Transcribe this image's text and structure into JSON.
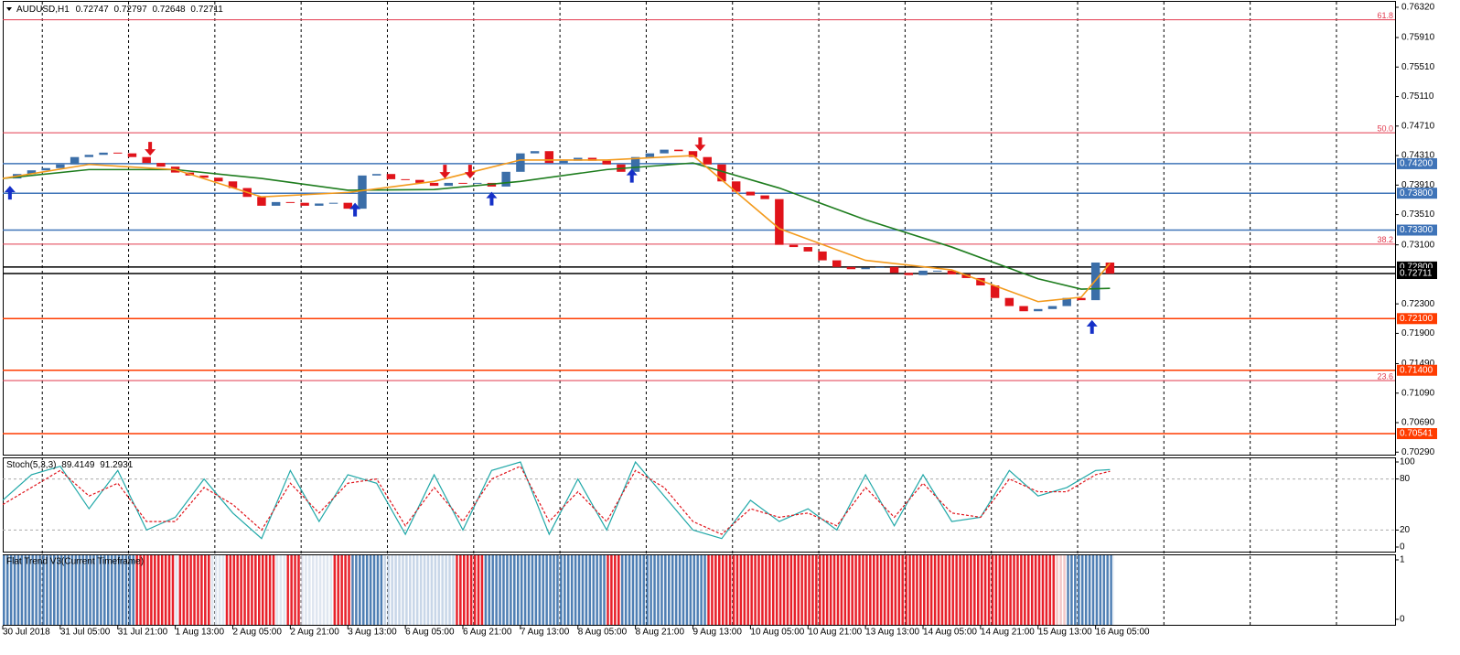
{
  "chart_data": {
    "type": "candlestick",
    "symbol": "AUDUSD,H1",
    "ohlc": [
      0.72747,
      0.72797,
      0.72648,
      0.72711
    ],
    "xlim": [
      0,
      387.3
    ],
    "ylim": [
      0.70256,
      0.76394
    ],
    "yticks": [
      {
        "value": 0.7632,
        "label": "0.76320"
      },
      {
        "value": 0.7591,
        "label": "0.75910"
      },
      {
        "value": 0.7551,
        "label": "0.75510"
      },
      {
        "value": 0.7511,
        "label": "0.75110"
      },
      {
        "value": 0.7471,
        "label": "0.74710"
      },
      {
        "value": 0.7431,
        "label": "0.74310"
      },
      {
        "value": 0.7391,
        "label": "0.73910"
      },
      {
        "value": 0.7351,
        "label": "0.73510"
      },
      {
        "value": 0.731,
        "label": "0.73100"
      },
      {
        "value": 0.723,
        "label": "0.72300"
      },
      {
        "value": 0.719,
        "label": "0.71900"
      },
      {
        "value": 0.7149,
        "label": "0.71490"
      },
      {
        "value": 0.7109,
        "label": "0.71090"
      },
      {
        "value": 0.7069,
        "label": "0.70690"
      },
      {
        "value": 0.7029,
        "label": "0.70290"
      }
    ],
    "xticks": [
      {
        "value": 0,
        "label": "30 Jul 2018"
      },
      {
        "value": 16,
        "label": "31 Jul 05:00"
      },
      {
        "value": 32,
        "label": "31 Jul 21:00"
      },
      {
        "value": 48,
        "label": "1 Aug 13:00"
      },
      {
        "value": 64,
        "label": "2 Aug 05:00"
      },
      {
        "value": 80,
        "label": "2 Aug 21:00"
      },
      {
        "value": 96,
        "label": "3 Aug 13:00"
      },
      {
        "value": 112,
        "label": "6 Aug 05:00"
      },
      {
        "value": 128,
        "label": "6 Aug 21:00"
      },
      {
        "value": 144,
        "label": "7 Aug 13:00"
      },
      {
        "value": 160,
        "label": "8 Aug 05:00"
      },
      {
        "value": 176,
        "label": "8 Aug 21:00"
      },
      {
        "value": 192,
        "label": "9 Aug 13:00"
      },
      {
        "value": 208,
        "label": "10 Aug 05:00"
      },
      {
        "value": 224,
        "label": "10 Aug 21:00"
      },
      {
        "value": 240,
        "label": "13 Aug 13:00"
      },
      {
        "value": 256,
        "label": "14 Aug 05:00"
      },
      {
        "value": 272,
        "label": "14 Aug 21:00"
      },
      {
        "value": 288,
        "label": "15 Aug 13:00"
      },
      {
        "value": 304,
        "label": "16 Aug 05:00"
      }
    ],
    "xgrid": [
      11,
      35,
      59,
      83,
      107,
      131,
      155,
      179,
      203,
      227,
      251,
      275,
      299,
      323,
      347,
      371
    ],
    "up_color": "#3b6ea8",
    "down_color": "#e0131a",
    "x": [
      0,
      4,
      8,
      12,
      16,
      20,
      24,
      28,
      32,
      36,
      40,
      44,
      48,
      52,
      56,
      60,
      64,
      68,
      72,
      76,
      80,
      84,
      88,
      92,
      96,
      100,
      104,
      108,
      112,
      116,
      120,
      124,
      128,
      132,
      136,
      140,
      144,
      148,
      152,
      156,
      160,
      164,
      168,
      172,
      176,
      180,
      184,
      188,
      192,
      196,
      200,
      204,
      208,
      212,
      216,
      220,
      224,
      228,
      232,
      236,
      240,
      244,
      248,
      252,
      256,
      260,
      264,
      268,
      272,
      276,
      280,
      284,
      288,
      292,
      296,
      300,
      304,
      308
    ],
    "close": [
      0.74,
      0.7406,
      0.7411,
      0.7414,
      0.7419,
      0.7429,
      0.7432,
      0.7435,
      0.7434,
      0.7429,
      0.7421,
      0.7416,
      0.7408,
      0.7404,
      0.7401,
      0.7396,
      0.7387,
      0.7375,
      0.7363,
      0.7368,
      0.7367,
      0.7363,
      0.7366,
      0.7367,
      0.7359,
      0.7404,
      0.7406,
      0.7399,
      0.7398,
      0.7394,
      0.739,
      0.7394,
      0.7393,
      0.7394,
      0.7389,
      0.7409,
      0.7434,
      0.7437,
      0.7421,
      0.7424,
      0.7428,
      0.7424,
      0.7419,
      0.7409,
      0.7429,
      0.7434,
      0.7439,
      0.7437,
      0.7429,
      0.7419,
      0.7396,
      0.7382,
      0.7377,
      0.7372,
      0.731,
      0.7307,
      0.7301,
      0.7289,
      0.728,
      0.7277,
      0.7279,
      0.728,
      0.7272,
      0.7269,
      0.7275,
      0.7275,
      0.727,
      0.7265,
      0.7255,
      0.7238,
      0.7227,
      0.722,
      0.7223,
      0.7227,
      0.7238,
      0.7235,
      0.7286,
      0.7271
    ],
    "ma": [
      {
        "color": "#1e7d1e",
        "x": [
          0,
          24,
          48,
          72,
          96,
          120,
          144,
          168,
          192,
          216,
          240,
          264,
          288,
          300,
          308
        ],
        "values": [
          0.74,
          0.7412,
          0.7412,
          0.74,
          0.7384,
          0.7385,
          0.7396,
          0.7412,
          0.7421,
          0.7387,
          0.7344,
          0.7307,
          0.7264,
          0.725,
          0.7251
        ]
      },
      {
        "color": "#f39a1c",
        "x": [
          0,
          24,
          48,
          72,
          96,
          120,
          144,
          168,
          192,
          216,
          240,
          264,
          288,
          300,
          308
        ],
        "values": [
          0.74,
          0.7419,
          0.7412,
          0.7375,
          0.7381,
          0.7396,
          0.7425,
          0.7425,
          0.7431,
          0.7332,
          0.7289,
          0.7276,
          0.7233,
          0.7239,
          0.7285
        ]
      }
    ],
    "levels": [
      {
        "value": 0.742,
        "label": "0.74200",
        "color": "#3f74b8"
      },
      {
        "value": 0.738,
        "label": "0.73800",
        "color": "#3f74b8"
      },
      {
        "value": 0.733,
        "label": "0.73300",
        "color": "#3f74b8"
      },
      {
        "value": 0.728,
        "label": "0.72800",
        "color": "#000000"
      },
      {
        "value": 0.72711,
        "label": 0.72711,
        "color": "#000000"
      },
      {
        "value": 0.721,
        "label": "0.72100",
        "color": "#ff3c00"
      },
      {
        "value": 0.714,
        "label": "0.71400",
        "color": "#ff3c00"
      },
      {
        "value": 0.70541,
        "label": 0.70541,
        "color": "#ff3c00"
      }
    ],
    "fib_color": "#e23a4e",
    "fib": [
      {
        "price": 0.7615,
        "level": 61.8
      },
      {
        "price": 0.7462,
        "level": {
          "value": 50,
          "label": "50.0"
        }
      },
      {
        "price": 0.7311,
        "level": 38.2
      },
      {
        "price": 0.7126,
        "level": 23.6
      }
    ],
    "signals": [
      {
        "x": 2,
        "price": 0.739,
        "dir": "up"
      },
      {
        "x": 98,
        "price": 0.7367,
        "dir": "up"
      },
      {
        "x": 136,
        "price": 0.7382,
        "dir": "up"
      },
      {
        "x": 175,
        "price": 0.7413,
        "dir": "up"
      },
      {
        "x": 303,
        "price": 0.7208,
        "dir": "up"
      },
      {
        "x": 41,
        "price": 0.7431,
        "dir": "down"
      },
      {
        "x": 123,
        "price": 0.74,
        "dir": "down"
      },
      {
        "x": 130,
        "price": 0.74,
        "dir": "down"
      },
      {
        "x": 194,
        "price": 0.7437,
        "dir": "down"
      }
    ],
    "stoch": {
      "label": "Stoch(5,3,3)",
      "readings": [
        89.4149,
        91.2931
      ],
      "ylim": [
        0,
        100
      ],
      "yticks": [
        100,
        80,
        20,
        0
      ],
      "x": [
        0,
        8,
        16,
        24,
        32,
        40,
        48,
        56,
        64,
        72,
        80,
        88,
        96,
        104,
        112,
        120,
        128,
        136,
        144,
        152,
        160,
        168,
        176,
        184,
        192,
        200,
        208,
        216,
        224,
        232,
        240,
        248,
        256,
        264,
        272,
        280,
        288,
        296,
        304,
        308
      ],
      "k": {
        "color": "#20a8a8",
        "values": [
          55,
          85,
          95,
          45,
          90,
          20,
          35,
          80,
          40,
          10,
          90,
          30,
          85,
          75,
          15,
          85,
          20,
          90,
          100,
          15,
          80,
          20,
          100,
          60,
          20,
          10,
          55,
          30,
          45,
          20,
          85,
          25,
          85,
          30,
          35,
          90,
          60,
          70,
          90,
          91
        ]
      },
      "d": {
        "color": "#e0131a",
        "values": [
          50,
          70,
          90,
          60,
          75,
          30,
          30,
          70,
          50,
          20,
          75,
          40,
          75,
          80,
          25,
          70,
          30,
          80,
          95,
          30,
          65,
          30,
          90,
          70,
          30,
          15,
          45,
          35,
          40,
          25,
          70,
          35,
          75,
          40,
          35,
          80,
          65,
          65,
          85,
          89
        ]
      }
    },
    "flat": {
      "label": "Flat Trend V3(Current Timeframe)",
      "ylim": [
        0,
        1
      ],
      "yticks": [
        1,
        0
      ],
      "segments": [
        {
          "start": 0,
          "end": 37,
          "color": "#4f7fb4"
        },
        {
          "start": 37,
          "end": 48,
          "color": "#e8202a"
        },
        {
          "start": 48,
          "end": 49,
          "color": "#dfe6f0"
        },
        {
          "start": 49,
          "end": 58,
          "color": "#e8202a"
        },
        {
          "start": 58,
          "end": 62,
          "color": "#dfe6f0"
        },
        {
          "start": 62,
          "end": 76,
          "color": "#e8202a"
        },
        {
          "start": 76,
          "end": 79,
          "color": "#dfe6f0"
        },
        {
          "start": 79,
          "end": 83,
          "color": "#e8202a"
        },
        {
          "start": 83,
          "end": 92,
          "color": "#dfe6f0"
        },
        {
          "start": 92,
          "end": 97,
          "color": "#e8202a"
        },
        {
          "start": 97,
          "end": 106,
          "color": "#4f7fb4"
        },
        {
          "start": 106,
          "end": 126,
          "color": "#c8d6e8"
        },
        {
          "start": 126,
          "end": 134,
          "color": "#e8202a"
        },
        {
          "start": 134,
          "end": 168,
          "color": "#4f7fb4"
        },
        {
          "start": 168,
          "end": 172,
          "color": "#e8202a"
        },
        {
          "start": 172,
          "end": 196,
          "color": "#4f7fb4"
        },
        {
          "start": 196,
          "end": 293,
          "color": "#e8202a"
        },
        {
          "start": 293,
          "end": 296,
          "color": "#f2c8c8"
        },
        {
          "start": 296,
          "end": 309,
          "color": "#4f7fb4"
        }
      ]
    }
  }
}
